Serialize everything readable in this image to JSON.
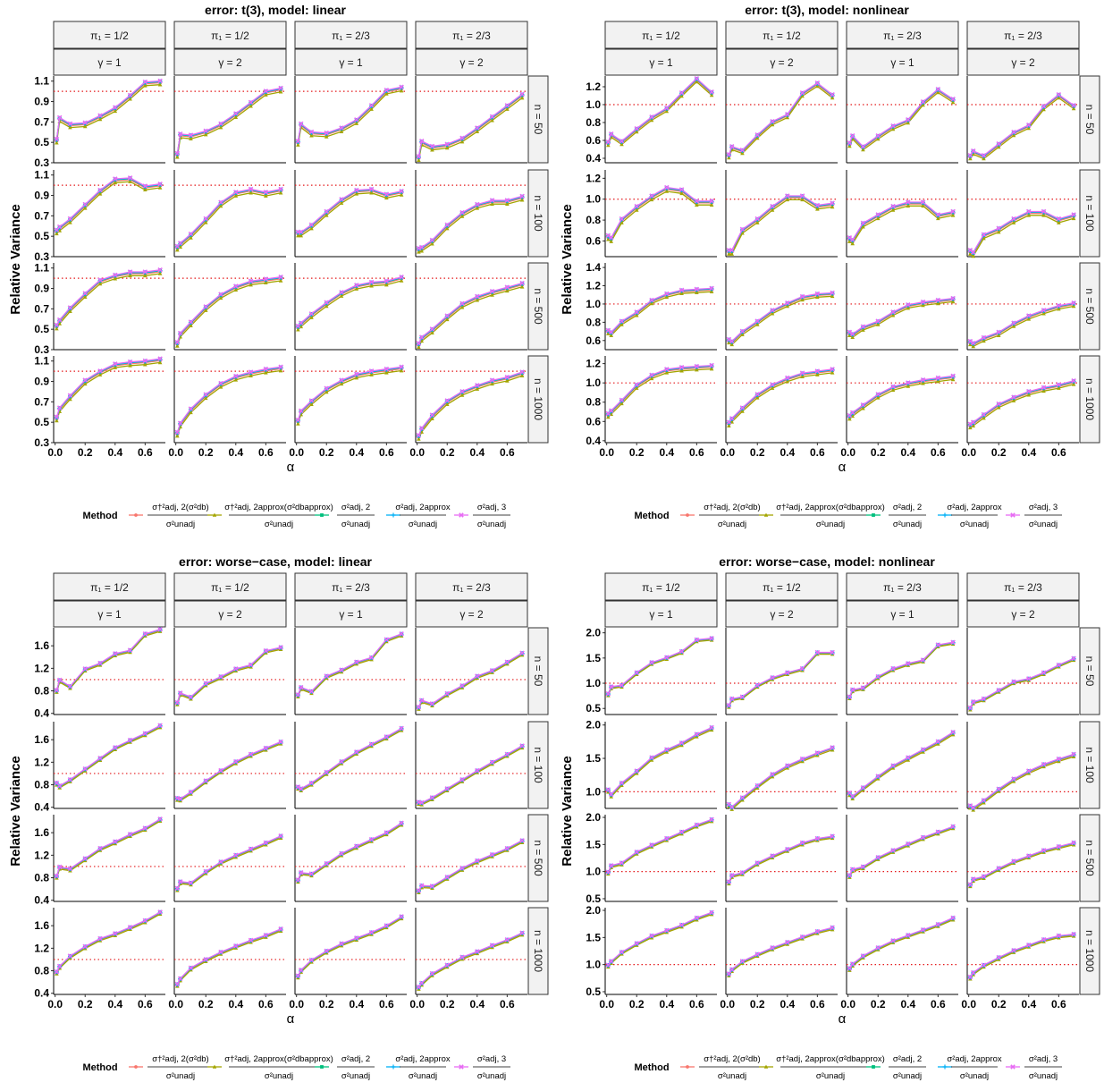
{
  "chart_data": {
    "type": "line",
    "ylabel": "Relative Variance",
    "xlabel": "α",
    "x": [
      0.01,
      0.03,
      0.1,
      0.2,
      0.3,
      0.4,
      0.5,
      0.6,
      0.7
    ],
    "xticks": [
      "0.0",
      "0.2",
      "0.4",
      "0.6"
    ],
    "columns": [
      {
        "pi": "π₁ = 1/2",
        "gamma": "γ = 1"
      },
      {
        "pi": "π₁ = 1/2",
        "gamma": "γ = 2"
      },
      {
        "pi": "π₁ = 2/3",
        "gamma": "γ = 1"
      },
      {
        "pi": "π₁ = 2/3",
        "gamma": "γ = 2"
      }
    ],
    "rows": [
      "n = 50",
      "n = 100",
      "n = 500",
      "n = 1000"
    ],
    "reference_line": 1.0,
    "legend": {
      "title": "Method",
      "entries": [
        {
          "num": "σ†²adj, 2(σ²db)",
          "den": "σ²unadj",
          "color": "#F8766D",
          "marker": "circle"
        },
        {
          "num": "σ†²adj, 2approx(σ²dbapprox)",
          "den": "σ²unadj",
          "color": "#A3A500",
          "marker": "triangle"
        },
        {
          "num": "σ²adj, 2",
          "den": "σ²unadj",
          "color": "#00BF7D",
          "marker": "square"
        },
        {
          "num": "σ²adj, 2approx",
          "den": "σ²unadj",
          "color": "#00B0F6",
          "marker": "plus"
        },
        {
          "num": "σ²adj, 3",
          "den": "σ²unadj",
          "color": "#E76BF3",
          "marker": "cross"
        }
      ]
    },
    "panels": [
      {
        "title": "error: t(3), model: linear",
        "yticks": [
          [
            "0.3",
            "0.5",
            "0.7",
            "0.9",
            "1.1"
          ],
          [
            "0.3",
            "0.5",
            "0.7",
            "0.9",
            "1.1"
          ],
          [
            "0.3",
            "0.5",
            "0.7",
            "0.9",
            "1.1"
          ],
          [
            "0.3",
            "0.5",
            "0.7",
            "0.9",
            "1.1"
          ]
        ],
        "ylim": [
          [
            0.3,
            1.15
          ],
          [
            0.3,
            1.15
          ],
          [
            0.3,
            1.15
          ],
          [
            0.3,
            1.15
          ]
        ],
        "data": [
          [
            [
              0.52,
              0.73,
              0.67,
              0.68,
              0.75,
              0.83,
              0.95,
              1.08,
              1.09
            ],
            [
              0.38,
              0.57,
              0.56,
              0.6,
              0.67,
              0.77,
              0.88,
              0.99,
              1.02
            ],
            [
              0.5,
              0.67,
              0.59,
              0.58,
              0.63,
              0.71,
              0.85,
              1.0,
              1.03
            ],
            [
              0.35,
              0.5,
              0.45,
              0.47,
              0.53,
              0.63,
              0.74,
              0.85,
              0.96
            ]
          ],
          [
            [
              0.55,
              0.58,
              0.66,
              0.8,
              0.94,
              1.05,
              1.06,
              0.98,
              1.0
            ],
            [
              0.39,
              0.42,
              0.51,
              0.66,
              0.82,
              0.92,
              0.95,
              0.92,
              0.95
            ],
            [
              0.53,
              0.53,
              0.6,
              0.73,
              0.85,
              0.94,
              0.95,
              0.9,
              0.93
            ],
            [
              0.37,
              0.38,
              0.45,
              0.6,
              0.72,
              0.8,
              0.84,
              0.84,
              0.88
            ]
          ],
          [
            [
              0.53,
              0.58,
              0.7,
              0.84,
              0.97,
              1.02,
              1.05,
              1.05,
              1.07
            ],
            [
              0.36,
              0.45,
              0.56,
              0.71,
              0.83,
              0.91,
              0.96,
              0.98,
              1.0
            ],
            [
              0.52,
              0.55,
              0.64,
              0.75,
              0.85,
              0.92,
              0.95,
              0.96,
              1.0
            ],
            [
              0.35,
              0.41,
              0.49,
              0.62,
              0.74,
              0.81,
              0.86,
              0.9,
              0.94
            ]
          ],
          [
            [
              0.54,
              0.63,
              0.75,
              0.9,
              0.99,
              1.06,
              1.08,
              1.09,
              1.11
            ],
            [
              0.39,
              0.48,
              0.62,
              0.76,
              0.87,
              0.94,
              0.98,
              1.01,
              1.03
            ],
            [
              0.51,
              0.6,
              0.7,
              0.82,
              0.9,
              0.96,
              0.99,
              1.01,
              1.03
            ],
            [
              0.36,
              0.43,
              0.56,
              0.7,
              0.79,
              0.85,
              0.9,
              0.93,
              0.98
            ]
          ]
        ]
      },
      {
        "title": "error: t(3), model: nonlinear",
        "yticks": [
          [
            "0.4",
            "0.6",
            "0.8",
            "1.0",
            "1.2"
          ],
          [
            "0.6",
            "0.8",
            "1.0",
            "1.2"
          ],
          [
            "0.6",
            "0.8",
            "1.0",
            "1.2",
            "1.4"
          ],
          [
            "0.4",
            "0.6",
            "0.8",
            "1.0",
            "1.2"
          ]
        ],
        "ylim": [
          [
            0.35,
            1.32
          ],
          [
            0.45,
            1.28
          ],
          [
            0.5,
            1.45
          ],
          [
            0.38,
            1.28
          ]
        ],
        "data": [
          [
            [
              0.57,
              0.66,
              0.58,
              0.72,
              0.85,
              0.95,
              1.12,
              1.28,
              1.13
            ],
            [
              0.43,
              0.52,
              0.48,
              0.65,
              0.8,
              0.88,
              1.12,
              1.23,
              1.1
            ],
            [
              0.56,
              0.64,
              0.52,
              0.64,
              0.75,
              0.82,
              1.02,
              1.16,
              1.05
            ],
            [
              0.42,
              0.47,
              0.42,
              0.55,
              0.68,
              0.76,
              0.97,
              1.1,
              0.98
            ]
          ],
          [
            [
              0.64,
              0.62,
              0.8,
              0.92,
              1.02,
              1.1,
              1.08,
              0.97,
              0.97
            ],
            [
              0.5,
              0.5,
              0.7,
              0.8,
              0.92,
              1.02,
              1.02,
              0.93,
              0.95
            ],
            [
              0.62,
              0.6,
              0.76,
              0.84,
              0.92,
              0.96,
              0.96,
              0.84,
              0.87
            ],
            [
              0.5,
              0.48,
              0.65,
              0.71,
              0.8,
              0.87,
              0.87,
              0.8,
              0.84
            ]
          ],
          [
            [
              0.7,
              0.68,
              0.8,
              0.9,
              1.03,
              1.1,
              1.14,
              1.15,
              1.16
            ],
            [
              0.6,
              0.58,
              0.69,
              0.8,
              0.92,
              1.0,
              1.07,
              1.1,
              1.11
            ],
            [
              0.68,
              0.66,
              0.74,
              0.8,
              0.9,
              0.98,
              1.01,
              1.03,
              1.05
            ],
            [
              0.58,
              0.56,
              0.62,
              0.68,
              0.78,
              0.86,
              0.92,
              0.97,
              1.0
            ]
          ],
          [
            [
              0.67,
              0.7,
              0.81,
              0.97,
              1.07,
              1.13,
              1.15,
              1.16,
              1.17
            ],
            [
              0.58,
              0.62,
              0.73,
              0.87,
              0.97,
              1.04,
              1.09,
              1.11,
              1.13
            ],
            [
              0.65,
              0.68,
              0.76,
              0.87,
              0.95,
              0.99,
              1.02,
              1.04,
              1.06
            ],
            [
              0.56,
              0.58,
              0.66,
              0.77,
              0.84,
              0.9,
              0.94,
              0.97,
              1.01
            ]
          ]
        ]
      },
      {
        "title": "error: worse−case, model: linear",
        "yticks": [
          [
            "0.4",
            "0.8",
            "1.2",
            "1.6"
          ],
          [
            "0.4",
            "0.8",
            "1.2",
            "1.6"
          ],
          [
            "0.4",
            "0.8",
            "1.2",
            "1.6"
          ],
          [
            "0.4",
            "0.8",
            "1.2",
            "1.6"
          ]
        ],
        "ylim": [
          [
            0.38,
            1.92
          ],
          [
            0.38,
            1.92
          ],
          [
            0.38,
            1.92
          ],
          [
            0.38,
            1.92
          ]
        ],
        "data": [
          [
            [
              0.8,
              0.98,
              0.87,
              1.18,
              1.28,
              1.45,
              1.51,
              1.8,
              1.88
            ],
            [
              0.58,
              0.75,
              0.68,
              0.92,
              1.04,
              1.18,
              1.25,
              1.5,
              1.56
            ],
            [
              0.72,
              0.85,
              0.78,
              1.05,
              1.16,
              1.3,
              1.38,
              1.7,
              1.8
            ],
            [
              0.5,
              0.62,
              0.56,
              0.74,
              0.88,
              1.05,
              1.15,
              1.3,
              1.46
            ]
          ],
          [
            [
              0.82,
              0.77,
              0.88,
              1.07,
              1.26,
              1.45,
              1.58,
              1.7,
              1.84
            ],
            [
              0.55,
              0.54,
              0.66,
              0.86,
              1.04,
              1.2,
              1.33,
              1.44,
              1.55
            ],
            [
              0.75,
              0.72,
              0.82,
              1.01,
              1.2,
              1.37,
              1.51,
              1.64,
              1.79
            ],
            [
              0.48,
              0.47,
              0.56,
              0.72,
              0.88,
              1.04,
              1.19,
              1.33,
              1.48
            ]
          ],
          [
            [
              0.82,
              0.98,
              0.95,
              1.13,
              1.31,
              1.43,
              1.56,
              1.67,
              1.83
            ],
            [
              0.6,
              0.72,
              0.7,
              0.9,
              1.07,
              1.19,
              1.3,
              1.41,
              1.53
            ],
            [
              0.75,
              0.88,
              0.86,
              1.04,
              1.22,
              1.35,
              1.47,
              1.59,
              1.76
            ],
            [
              0.56,
              0.65,
              0.64,
              0.8,
              0.96,
              1.09,
              1.2,
              1.31,
              1.45
            ]
          ],
          [
            [
              0.77,
              0.87,
              1.05,
              1.22,
              1.36,
              1.45,
              1.56,
              1.68,
              1.83
            ],
            [
              0.55,
              0.65,
              0.84,
              0.99,
              1.12,
              1.23,
              1.33,
              1.42,
              1.53
            ],
            [
              0.7,
              0.8,
              0.98,
              1.14,
              1.27,
              1.37,
              1.47,
              1.59,
              1.75
            ],
            [
              0.5,
              0.57,
              0.74,
              0.89,
              1.03,
              1.13,
              1.24,
              1.34,
              1.46
            ]
          ]
        ]
      },
      {
        "title": "error: worse−case, model: nonlinear",
        "yticks": [
          [
            "0.5",
            "1.0",
            "1.5",
            "2.0"
          ],
          [
            "1.0",
            "1.5",
            "2.0"
          ],
          [
            "0.5",
            "1.0",
            "1.5",
            "2.0"
          ],
          [
            "0.5",
            "1.0",
            "1.5",
            "2.0"
          ]
        ],
        "ylim": [
          [
            0.38,
            2.1
          ],
          [
            0.75,
            2.05
          ],
          [
            0.45,
            2.05
          ],
          [
            0.45,
            2.05
          ]
        ],
        "data": [
          [
            [
              0.78,
              0.92,
              0.95,
              1.2,
              1.4,
              1.5,
              1.62,
              1.85,
              1.88
            ],
            [
              0.55,
              0.68,
              0.72,
              0.95,
              1.1,
              1.2,
              1.28,
              1.6,
              1.6
            ],
            [
              0.72,
              0.86,
              0.9,
              1.12,
              1.28,
              1.38,
              1.45,
              1.75,
              1.8
            ],
            [
              0.5,
              0.62,
              0.68,
              0.85,
              1.02,
              1.08,
              1.2,
              1.35,
              1.48
            ]
          ],
          [
            [
              1.02,
              0.95,
              1.12,
              1.3,
              1.5,
              1.62,
              1.72,
              1.85,
              1.95
            ],
            [
              0.8,
              0.76,
              0.9,
              1.08,
              1.25,
              1.38,
              1.48,
              1.57,
              1.65
            ],
            [
              0.97,
              0.92,
              1.05,
              1.22,
              1.38,
              1.5,
              1.62,
              1.74,
              1.88
            ],
            [
              0.78,
              0.75,
              0.86,
              1.03,
              1.18,
              1.3,
              1.4,
              1.48,
              1.55
            ]
          ],
          [
            [
              0.98,
              1.1,
              1.15,
              1.35,
              1.48,
              1.6,
              1.72,
              1.85,
              1.95
            ],
            [
              0.8,
              0.92,
              0.97,
              1.15,
              1.28,
              1.4,
              1.52,
              1.6,
              1.64
            ],
            [
              0.92,
              1.03,
              1.08,
              1.25,
              1.38,
              1.5,
              1.62,
              1.72,
              1.82
            ],
            [
              0.75,
              0.85,
              0.9,
              1.05,
              1.18,
              1.28,
              1.38,
              1.45,
              1.52
            ]
          ],
          [
            [
              0.98,
              1.05,
              1.22,
              1.38,
              1.52,
              1.62,
              1.72,
              1.85,
              1.95
            ],
            [
              0.82,
              0.9,
              1.05,
              1.18,
              1.3,
              1.4,
              1.5,
              1.6,
              1.67
            ],
            [
              0.92,
              1.0,
              1.15,
              1.3,
              1.43,
              1.53,
              1.63,
              1.73,
              1.85
            ],
            [
              0.76,
              0.84,
              0.98,
              1.12,
              1.25,
              1.35,
              1.45,
              1.52,
              1.55
            ]
          ]
        ]
      }
    ]
  }
}
